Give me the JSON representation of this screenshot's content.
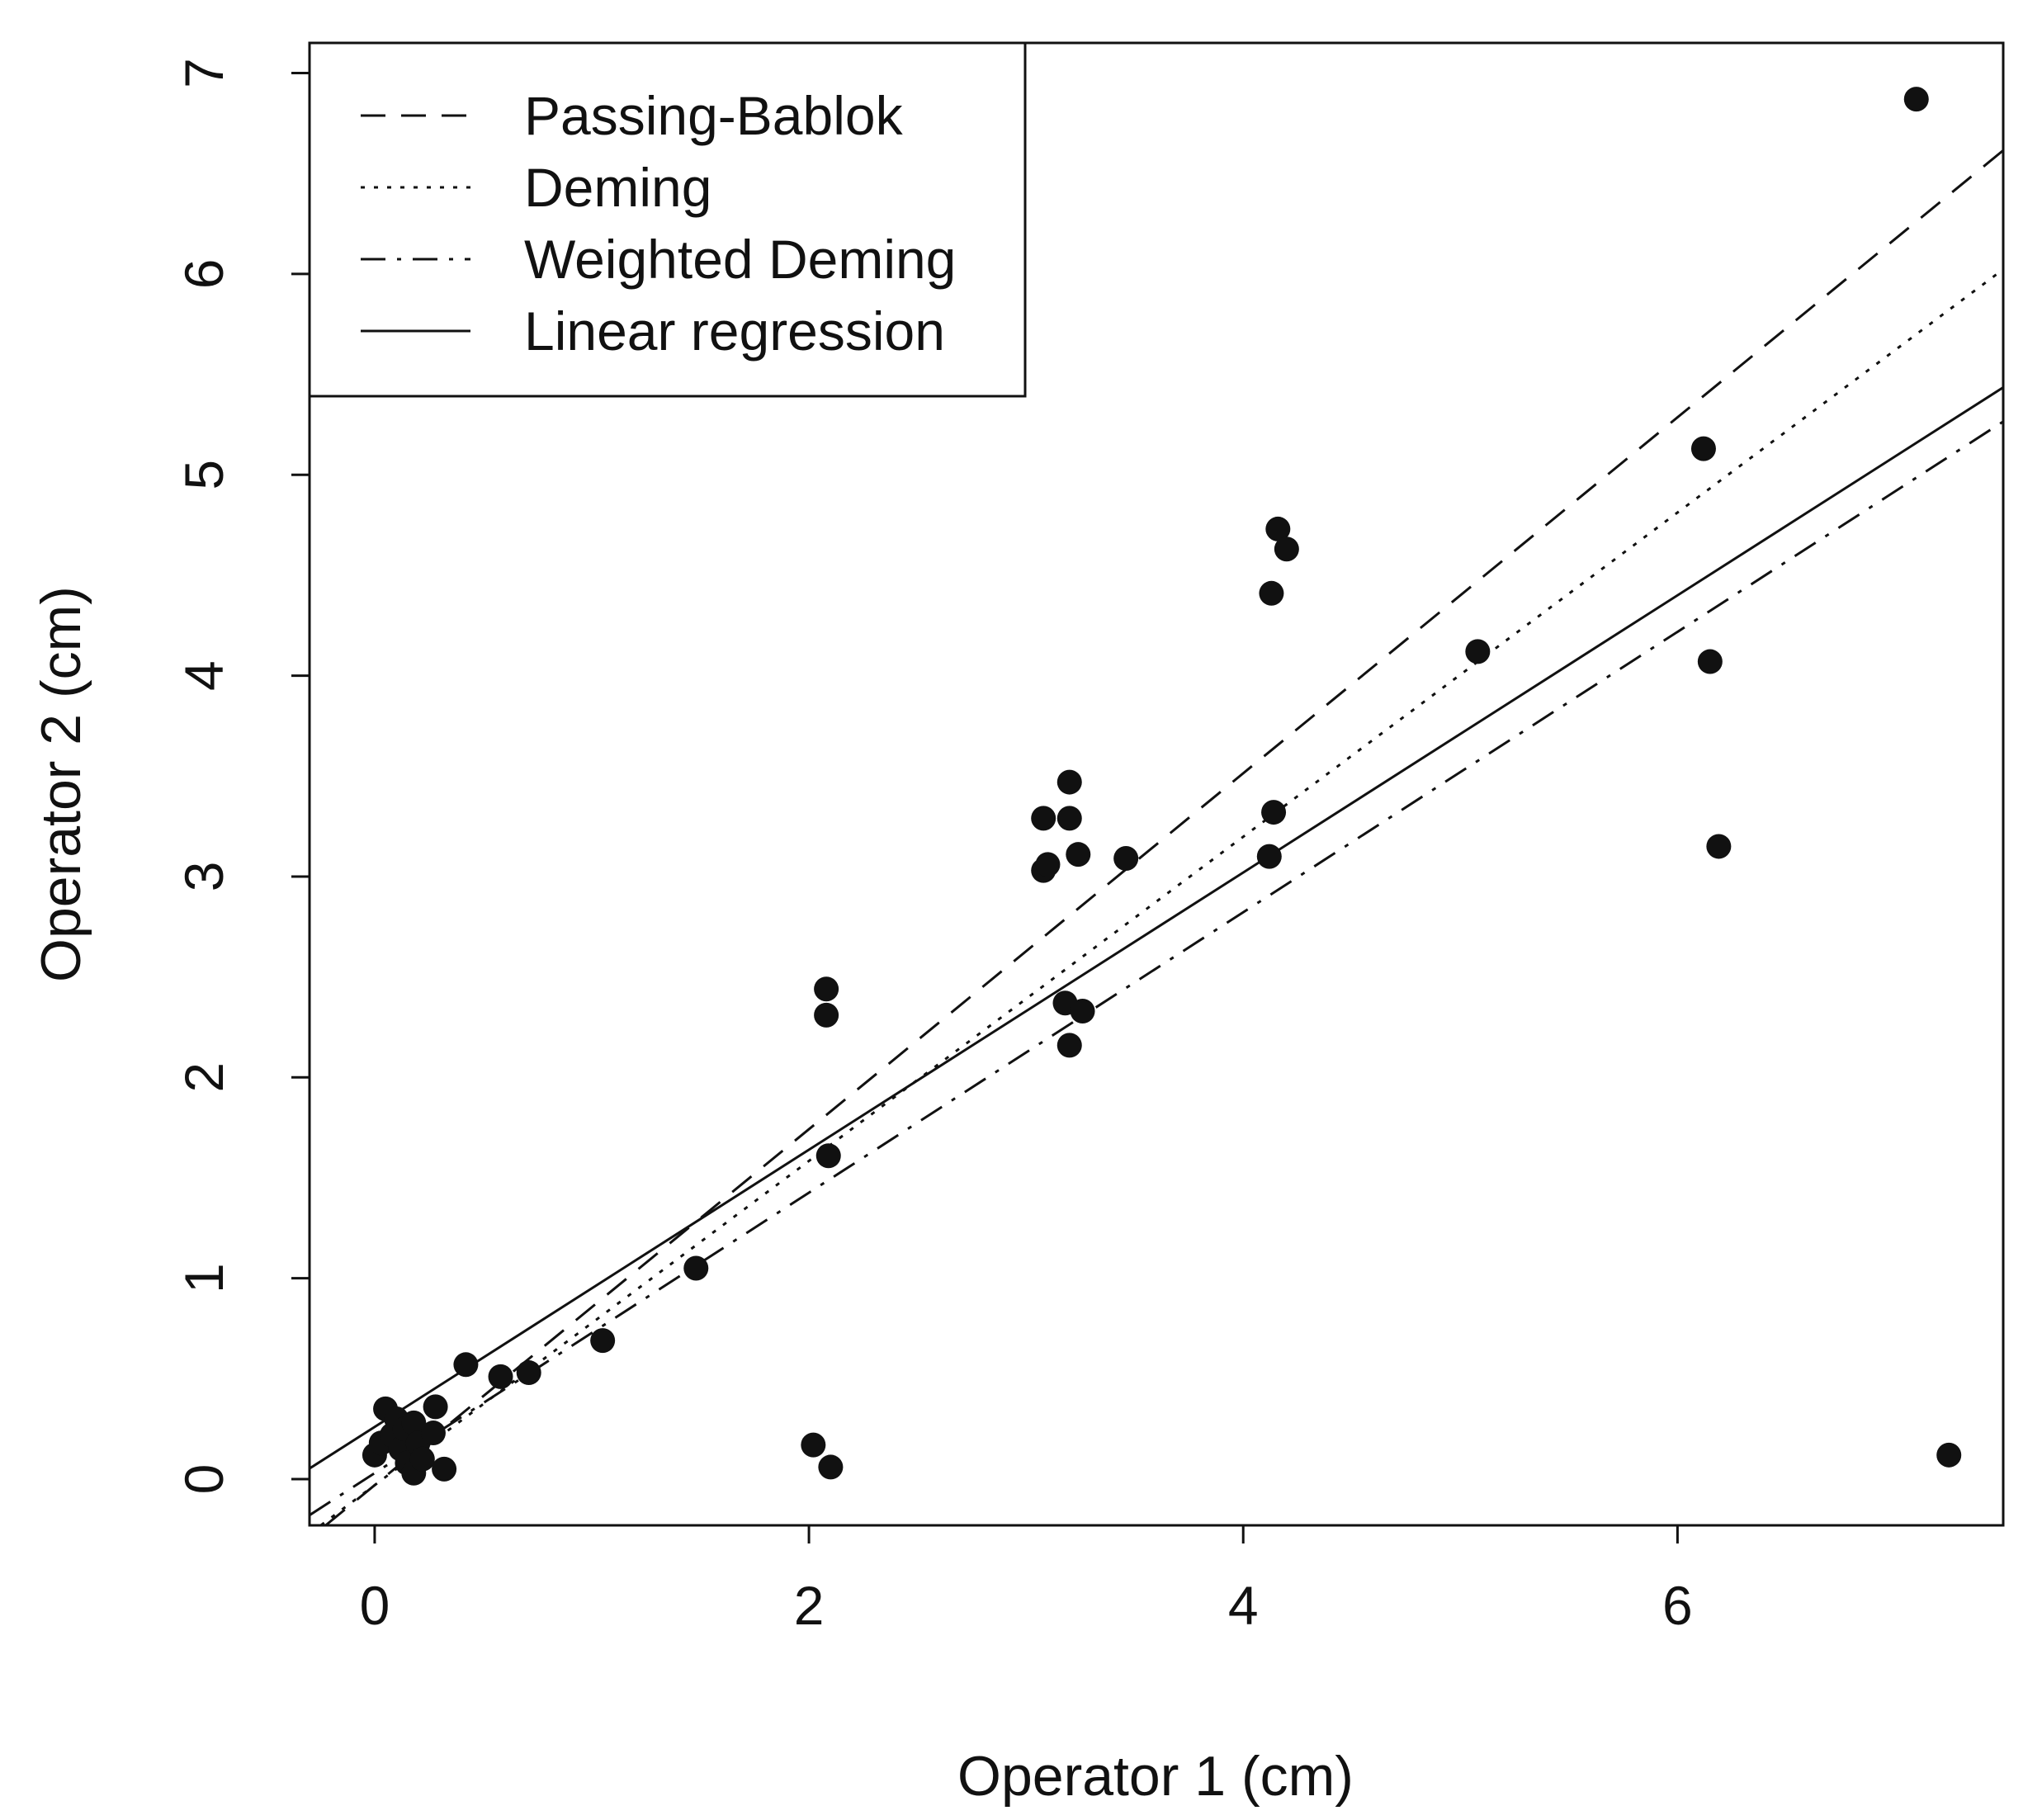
{
  "chart_data": {
    "type": "scatter",
    "title": "",
    "xlabel": "Operator 1 (cm)",
    "ylabel": "Operator 2 (cm)",
    "xlim": [
      -0.3,
      7.5
    ],
    "ylim": [
      -0.23,
      7.15
    ],
    "xticks": [
      0,
      2,
      4,
      6
    ],
    "yticks": [
      0,
      1,
      2,
      3,
      4,
      5,
      6,
      7
    ],
    "points": [
      {
        "x": 0.0,
        "y": 0.12
      },
      {
        "x": 0.03,
        "y": 0.18
      },
      {
        "x": 0.05,
        "y": 0.35
      },
      {
        "x": 0.08,
        "y": 0.22
      },
      {
        "x": 0.1,
        "y": 0.3
      },
      {
        "x": 0.12,
        "y": 0.15
      },
      {
        "x": 0.14,
        "y": 0.25
      },
      {
        "x": 0.15,
        "y": 0.08
      },
      {
        "x": 0.18,
        "y": 0.03
      },
      {
        "x": 0.18,
        "y": 0.28
      },
      {
        "x": 0.2,
        "y": 0.18
      },
      {
        "x": 0.22,
        "y": 0.1
      },
      {
        "x": 0.27,
        "y": 0.23
      },
      {
        "x": 0.28,
        "y": 0.36
      },
      {
        "x": 0.32,
        "y": 0.05
      },
      {
        "x": 0.42,
        "y": 0.57
      },
      {
        "x": 0.58,
        "y": 0.51
      },
      {
        "x": 0.71,
        "y": 0.53
      },
      {
        "x": 1.05,
        "y": 0.69
      },
      {
        "x": 1.48,
        "y": 1.05
      },
      {
        "x": 2.02,
        "y": 0.17
      },
      {
        "x": 2.08,
        "y": 2.44
      },
      {
        "x": 2.08,
        "y": 2.31
      },
      {
        "x": 2.09,
        "y": 1.61
      },
      {
        "x": 2.1,
        "y": 0.06
      },
      {
        "x": 3.08,
        "y": 3.29
      },
      {
        "x": 3.08,
        "y": 3.03
      },
      {
        "x": 3.1,
        "y": 3.06
      },
      {
        "x": 3.18,
        "y": 2.37
      },
      {
        "x": 3.2,
        "y": 3.47
      },
      {
        "x": 3.2,
        "y": 3.29
      },
      {
        "x": 3.2,
        "y": 2.16
      },
      {
        "x": 3.24,
        "y": 3.11
      },
      {
        "x": 3.26,
        "y": 2.33
      },
      {
        "x": 3.46,
        "y": 3.09
      },
      {
        "x": 4.12,
        "y": 3.1
      },
      {
        "x": 4.13,
        "y": 4.41
      },
      {
        "x": 4.14,
        "y": 3.32
      },
      {
        "x": 4.16,
        "y": 4.73
      },
      {
        "x": 4.2,
        "y": 4.63
      },
      {
        "x": 5.08,
        "y": 4.12
      },
      {
        "x": 6.12,
        "y": 5.13
      },
      {
        "x": 6.15,
        "y": 4.07
      },
      {
        "x": 6.19,
        "y": 3.15
      },
      {
        "x": 7.1,
        "y": 6.87
      },
      {
        "x": 7.25,
        "y": 0.12
      }
    ],
    "series": [
      {
        "name": "Passing-Bablok",
        "style": "dashed",
        "intercept": -0.03,
        "slope": 0.886
      },
      {
        "name": "Deming",
        "style": "dotted",
        "intercept": -0.03,
        "slope": 0.807
      },
      {
        "name": "Weighted Deming",
        "style": "dashdot",
        "intercept": 0.03,
        "slope": 0.698
      },
      {
        "name": "Linear regression",
        "style": "solid",
        "intercept": 0.26,
        "slope": 0.69
      }
    ],
    "legend": {
      "position": "top-left",
      "entries": [
        "Passing-Bablok",
        "Deming",
        "Weighted Deming",
        "Linear regression"
      ]
    },
    "colors": {
      "ink": "#111111",
      "background": "#ffffff"
    }
  }
}
